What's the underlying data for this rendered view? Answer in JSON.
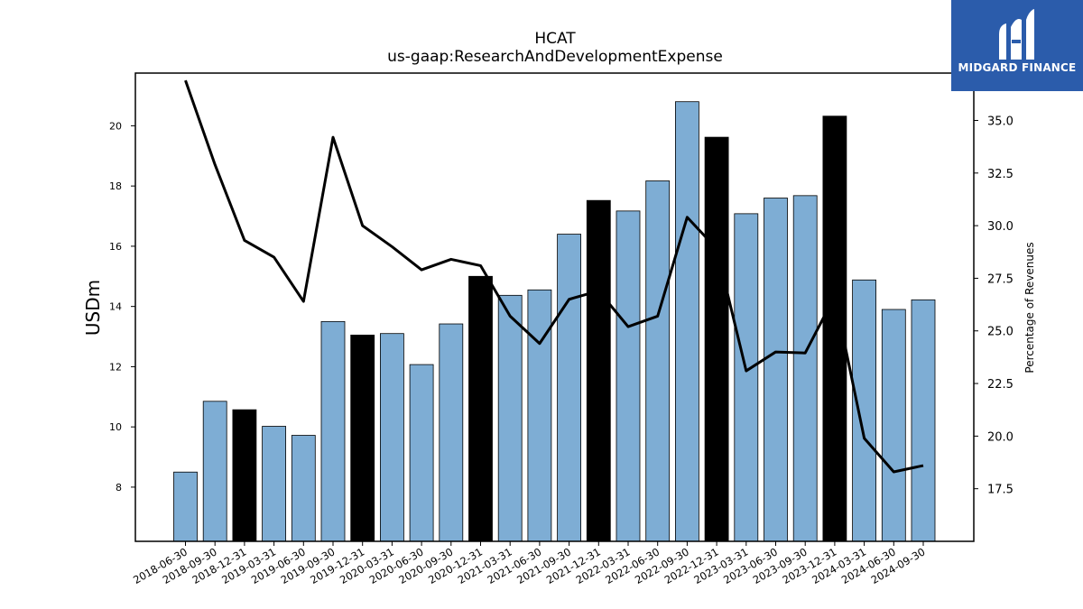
{
  "brand": {
    "name": "MIDGARD FINANCE",
    "bg_color": "#2b5cab"
  },
  "chart_data": {
    "type": "bar",
    "title": "HCAT",
    "subtitle": "us-gaap:ResearchAndDevelopmentExpense",
    "ylabel": "USDm",
    "y2label": "Percentage of Revenues",
    "ylim": [
      6.2,
      21.75
    ],
    "y2lim": [
      15.0,
      37.25
    ],
    "yticks": [
      8,
      10,
      12,
      14,
      16,
      18,
      20
    ],
    "y2ticks": [
      17.5,
      20.0,
      22.5,
      25.0,
      27.5,
      30.0,
      32.5,
      35.0
    ],
    "categories": [
      "2018-06-30",
      "2018-09-30",
      "2018-12-31",
      "2019-03-31",
      "2019-06-30",
      "2019-09-30",
      "2019-12-31",
      "2020-03-31",
      "2020-06-30",
      "2020-09-30",
      "2020-12-31",
      "2021-03-31",
      "2021-06-30",
      "2021-09-30",
      "2021-12-31",
      "2022-03-31",
      "2022-06-30",
      "2022-09-30",
      "2022-12-31",
      "2023-03-31",
      "2023-06-30",
      "2023-09-30",
      "2023-12-31",
      "2024-03-31",
      "2024-06-30",
      "2024-09-30"
    ],
    "series": [
      {
        "kind": "bar",
        "values": [
          8.5,
          10.85,
          10.57,
          10.02,
          9.72,
          13.5,
          13.05,
          13.1,
          12.07,
          13.42,
          15.0,
          14.37,
          14.55,
          16.4,
          17.52,
          17.17,
          18.17,
          20.8,
          19.62,
          17.08,
          17.6,
          17.68,
          20.32,
          14.88,
          13.9,
          14.22
        ],
        "highlight": [
          false,
          false,
          true,
          false,
          false,
          false,
          true,
          false,
          false,
          false,
          true,
          false,
          false,
          false,
          true,
          false,
          false,
          false,
          true,
          false,
          false,
          false,
          true,
          false,
          false,
          false
        ],
        "color": "#7eadd4",
        "highlight_color": "#000000"
      },
      {
        "kind": "line",
        "axis": "right",
        "values": [
          36.9,
          32.9,
          29.3,
          28.5,
          26.4,
          34.2,
          30.0,
          29.0,
          27.9,
          28.4,
          28.1,
          25.7,
          24.4,
          26.5,
          26.9,
          25.2,
          25.7,
          30.4,
          28.9,
          23.1,
          24.0,
          23.95,
          26.65,
          19.9,
          18.3,
          18.6
        ],
        "color": "#000000"
      }
    ],
    "grid": false
  }
}
